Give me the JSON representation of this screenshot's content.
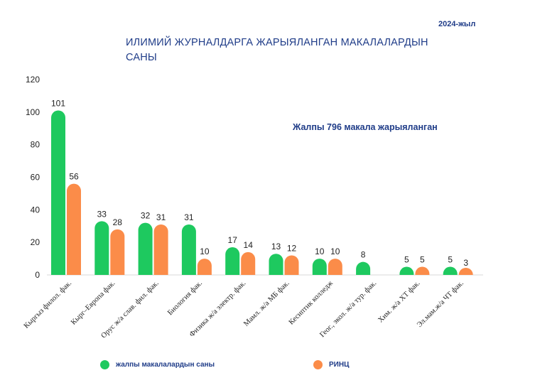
{
  "chart_data": {
    "type": "bar",
    "title": "ИЛИМИЙ   ЖУРНАЛДАРГА ЖАРЫЯЛАНГАН   МАКАЛАЛАРДЫН САНЫ",
    "subtitle": "2024-жыл",
    "annotation": "Жалпы 796 макала жарыяланган",
    "categories": [
      "Кыргыз филол. фак.",
      "Кырг–Европа фак.",
      "Орус ж/а слав. фил. фак.",
      "Биология фак.",
      "Физика ж/а электр. фак.",
      "Мамл. ж/а МБ фак.",
      "Кесиптик колледж",
      "Геог., экол. ж/а тур. фак.",
      "Хим. ж/а ХТ фак.",
      "Эл.мам.ж/а ЧТ фак."
    ],
    "series": [
      {
        "name": "жалпы макалалардын саны",
        "color": "#1ec95f",
        "values": [
          101,
          33,
          32,
          31,
          17,
          13,
          10,
          8,
          5,
          5
        ]
      },
      {
        "name": "РИНЦ",
        "color": "#fb8c49",
        "values": [
          56,
          28,
          31,
          10,
          14,
          12,
          10,
          null,
          5,
          3
        ]
      }
    ],
    "ylim": [
      0,
      120
    ],
    "yticks": [
      0,
      20,
      40,
      60,
      80,
      100,
      120
    ],
    "grid": false,
    "legend_position": "bottom"
  }
}
